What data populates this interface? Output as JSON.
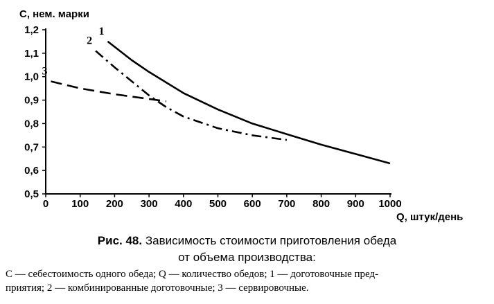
{
  "chart_data": {
    "type": "line",
    "ylabel": "С, нем. марки",
    "xlabel": "Q, штук/день",
    "xlim": [
      0,
      1000
    ],
    "ylim": [
      0.5,
      1.2
    ],
    "x_ticks": [
      0,
      100,
      200,
      300,
      400,
      500,
      600,
      700,
      800,
      900,
      1000
    ],
    "x_tick_labels": [
      "0",
      "100",
      "200",
      "300",
      "400",
      "500",
      "600",
      "700",
      "800",
      "900",
      "1000"
    ],
    "y_ticks": [
      0.5,
      0.6,
      0.7,
      0.8,
      0.9,
      1.0,
      1.1,
      1.2
    ],
    "y_tick_labels": [
      "0,5",
      "0,6",
      "0,7",
      "0,8",
      "0,9",
      "1,0",
      "1,1",
      "1,2"
    ],
    "grid": false,
    "series": [
      {
        "name": "1",
        "style": "solid",
        "x": [
          180,
          250,
          300,
          400,
          500,
          600,
          700,
          800,
          900,
          1000
        ],
        "y": [
          1.15,
          1.07,
          1.02,
          0.93,
          0.86,
          0.8,
          0.755,
          0.71,
          0.67,
          0.63
        ]
      },
      {
        "name": "2",
        "style": "dashdot",
        "x": [
          145,
          200,
          250,
          300,
          350,
          400,
          500,
          600,
          700
        ],
        "y": [
          1.11,
          1.04,
          0.98,
          0.92,
          0.87,
          0.83,
          0.78,
          0.75,
          0.73
        ]
      },
      {
        "name": "3",
        "style": "dashed",
        "x": [
          15,
          100,
          200,
          300,
          350
        ],
        "y": [
          0.98,
          0.95,
          0.925,
          0.905,
          0.895
        ]
      }
    ]
  },
  "caption": {
    "number": "Рис. 48.",
    "line1": "Зависимость стоимости приготовления обеда",
    "line2": "от объема производства:"
  },
  "note": {
    "line1": "С — себестоимость одного обеда; Q — количество обедов; 1 — доготовочные пред-",
    "line2": "приятия; 2 — комбинированные доготовочные; 3 — сервировочные."
  }
}
